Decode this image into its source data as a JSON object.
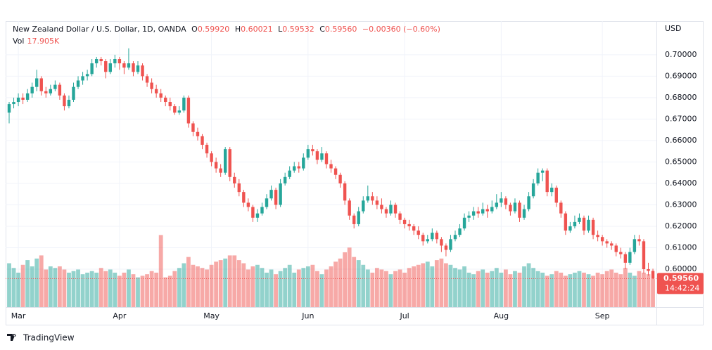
{
  "chart_data": {
    "type": "candlestick",
    "title": "New Zealand Dollar / U.S. Dollar, 1D, OANDA",
    "legend": {
      "open_key": "O",
      "open": "0.59920",
      "high_key": "H",
      "high": "0.60021",
      "low_key": "L",
      "low": "0.59532",
      "close_key": "C",
      "close": "0.59560",
      "change": "−0.00360 (−0.60%)",
      "volume_key": "Vol",
      "volume": "17.905K"
    },
    "currency": "USD",
    "last_price_label": "0.59560",
    "countdown": "14:42:24",
    "brand": "TradingView",
    "up_color": "#26a69a",
    "down_color": "#ef5350",
    "ylim": [
      0.5823,
      0.7157
    ],
    "yticks": [
      {
        "value": 0.6,
        "label": "0.60000"
      },
      {
        "value": 0.61,
        "label": "0.61000"
      },
      {
        "value": 0.62,
        "label": "0.62000"
      },
      {
        "value": 0.63,
        "label": "0.63000"
      },
      {
        "value": 0.64,
        "label": "0.64000"
      },
      {
        "value": 0.65,
        "label": "0.65000"
      },
      {
        "value": 0.66,
        "label": "0.66000"
      },
      {
        "value": 0.67,
        "label": "0.67000"
      },
      {
        "value": 0.68,
        "label": "0.68000"
      },
      {
        "value": 0.69,
        "label": "0.69000"
      },
      {
        "value": 0.7,
        "label": "0.70000"
      }
    ],
    "grid": true,
    "categories": [
      null,
      null,
      "Mar",
      null,
      null,
      null,
      null,
      null,
      null,
      null,
      null,
      null,
      null,
      null,
      null,
      null,
      null,
      null,
      null,
      null,
      null,
      null,
      null,
      null,
      "Apr",
      null,
      null,
      null,
      null,
      null,
      null,
      null,
      null,
      null,
      null,
      null,
      null,
      null,
      null,
      null,
      null,
      null,
      null,
      null,
      "May",
      null,
      null,
      null,
      null,
      null,
      null,
      null,
      null,
      null,
      null,
      null,
      null,
      null,
      null,
      null,
      null,
      null,
      null,
      null,
      null,
      "Jun",
      null,
      null,
      null,
      null,
      null,
      null,
      null,
      null,
      null,
      null,
      null,
      null,
      null,
      null,
      null,
      null,
      null,
      null,
      null,
      null,
      "Jul",
      null,
      null,
      null,
      null,
      null,
      null,
      null,
      null,
      null,
      null,
      null,
      null,
      null,
      null,
      null,
      null,
      null,
      null,
      null,
      null,
      "Aug",
      null,
      null,
      null,
      null,
      null,
      null,
      null,
      null,
      null,
      null,
      null,
      null,
      null,
      null,
      null,
      null,
      null,
      null,
      null,
      null,
      null,
      "Sep",
      null,
      null,
      null,
      null,
      null,
      null,
      null,
      null,
      null,
      null,
      null
    ],
    "candles": [
      [
        0.673,
        0.678,
        0.668,
        0.677
      ],
      [
        0.677,
        0.68,
        0.675,
        0.678
      ],
      [
        0.678,
        0.682,
        0.676,
        0.68
      ],
      [
        0.68,
        0.682,
        0.677,
        0.679
      ],
      [
        0.679,
        0.684,
        0.678,
        0.682
      ],
      [
        0.682,
        0.687,
        0.68,
        0.685
      ],
      [
        0.685,
        0.693,
        0.683,
        0.689
      ],
      [
        0.689,
        0.69,
        0.681,
        0.683
      ],
      [
        0.683,
        0.685,
        0.68,
        0.682
      ],
      [
        0.682,
        0.686,
        0.681,
        0.684
      ],
      [
        0.684,
        0.688,
        0.683,
        0.686
      ],
      [
        0.686,
        0.687,
        0.679,
        0.681
      ],
      [
        0.681,
        0.682,
        0.674,
        0.676
      ],
      [
        0.676,
        0.681,
        0.675,
        0.679
      ],
      [
        0.679,
        0.687,
        0.678,
        0.685
      ],
      [
        0.685,
        0.69,
        0.684,
        0.688
      ],
      [
        0.688,
        0.692,
        0.686,
        0.69
      ],
      [
        0.69,
        0.693,
        0.688,
        0.691
      ],
      [
        0.691,
        0.698,
        0.69,
        0.696
      ],
      [
        0.696,
        0.699,
        0.694,
        0.698
      ],
      [
        0.698,
        0.699,
        0.695,
        0.697
      ],
      [
        0.697,
        0.698,
        0.689,
        0.692
      ],
      [
        0.692,
        0.698,
        0.691,
        0.696
      ],
      [
        0.696,
        0.7,
        0.694,
        0.698
      ],
      [
        0.698,
        0.699,
        0.693,
        0.696
      ],
      [
        0.696,
        0.697,
        0.691,
        0.694
      ],
      [
        0.694,
        0.703,
        0.693,
        0.696
      ],
      [
        0.696,
        0.697,
        0.69,
        0.692
      ],
      [
        0.692,
        0.697,
        0.691,
        0.695
      ],
      [
        0.695,
        0.696,
        0.688,
        0.69
      ],
      [
        0.69,
        0.691,
        0.685,
        0.687
      ],
      [
        0.687,
        0.689,
        0.682,
        0.684
      ],
      [
        0.684,
        0.686,
        0.68,
        0.682
      ],
      [
        0.682,
        0.684,
        0.678,
        0.68
      ],
      [
        0.68,
        0.681,
        0.676,
        0.678
      ],
      [
        0.678,
        0.68,
        0.674,
        0.676
      ],
      [
        0.676,
        0.677,
        0.672,
        0.673
      ],
      [
        0.673,
        0.676,
        0.672,
        0.674
      ],
      [
        0.674,
        0.681,
        0.673,
        0.68
      ],
      [
        0.68,
        0.681,
        0.666,
        0.668
      ],
      [
        0.668,
        0.669,
        0.662,
        0.664
      ],
      [
        0.664,
        0.666,
        0.66,
        0.662
      ],
      [
        0.662,
        0.663,
        0.656,
        0.658
      ],
      [
        0.658,
        0.659,
        0.652,
        0.654
      ],
      [
        0.654,
        0.655,
        0.648,
        0.65
      ],
      [
        0.65,
        0.652,
        0.645,
        0.647
      ],
      [
        0.647,
        0.649,
        0.643,
        0.645
      ],
      [
        0.645,
        0.657,
        0.644,
        0.656
      ],
      [
        0.656,
        0.657,
        0.641,
        0.643
      ],
      [
        0.643,
        0.645,
        0.638,
        0.64
      ],
      [
        0.64,
        0.642,
        0.634,
        0.636
      ],
      [
        0.636,
        0.637,
        0.629,
        0.631
      ],
      [
        0.631,
        0.633,
        0.627,
        0.629
      ],
      [
        0.629,
        0.63,
        0.622,
        0.624
      ],
      [
        0.624,
        0.628,
        0.622,
        0.626
      ],
      [
        0.626,
        0.631,
        0.625,
        0.629
      ],
      [
        0.629,
        0.635,
        0.628,
        0.633
      ],
      [
        0.633,
        0.639,
        0.632,
        0.637
      ],
      [
        0.637,
        0.638,
        0.628,
        0.63
      ],
      [
        0.63,
        0.642,
        0.629,
        0.64
      ],
      [
        0.64,
        0.645,
        0.639,
        0.643
      ],
      [
        0.643,
        0.648,
        0.642,
        0.646
      ],
      [
        0.646,
        0.65,
        0.645,
        0.648
      ],
      [
        0.648,
        0.65,
        0.645,
        0.647
      ],
      [
        0.647,
        0.654,
        0.646,
        0.652
      ],
      [
        0.652,
        0.658,
        0.651,
        0.656
      ],
      [
        0.656,
        0.658,
        0.653,
        0.655
      ],
      [
        0.655,
        0.656,
        0.649,
        0.651
      ],
      [
        0.651,
        0.657,
        0.65,
        0.654
      ],
      [
        0.654,
        0.655,
        0.647,
        0.649
      ],
      [
        0.649,
        0.651,
        0.645,
        0.647
      ],
      [
        0.647,
        0.648,
        0.642,
        0.644
      ],
      [
        0.644,
        0.645,
        0.638,
        0.64
      ],
      [
        0.64,
        0.641,
        0.63,
        0.632
      ],
      [
        0.632,
        0.633,
        0.623,
        0.625
      ],
      [
        0.625,
        0.626,
        0.619,
        0.621
      ],
      [
        0.621,
        0.629,
        0.62,
        0.627
      ],
      [
        0.627,
        0.634,
        0.626,
        0.632
      ],
      [
        0.632,
        0.639,
        0.631,
        0.634
      ],
      [
        0.634,
        0.636,
        0.63,
        0.632
      ],
      [
        0.632,
        0.634,
        0.628,
        0.63
      ],
      [
        0.63,
        0.633,
        0.626,
        0.628
      ],
      [
        0.628,
        0.629,
        0.624,
        0.626
      ],
      [
        0.626,
        0.632,
        0.625,
        0.63
      ],
      [
        0.63,
        0.631,
        0.624,
        0.626
      ],
      [
        0.626,
        0.627,
        0.621,
        0.623
      ],
      [
        0.623,
        0.624,
        0.619,
        0.621
      ],
      [
        0.621,
        0.623,
        0.618,
        0.62
      ],
      [
        0.62,
        0.621,
        0.616,
        0.618
      ],
      [
        0.618,
        0.62,
        0.614,
        0.616
      ],
      [
        0.616,
        0.617,
        0.611,
        0.613
      ],
      [
        0.613,
        0.616,
        0.612,
        0.614
      ],
      [
        0.614,
        0.619,
        0.613,
        0.617
      ],
      [
        0.617,
        0.618,
        0.612,
        0.614
      ],
      [
        0.614,
        0.615,
        0.608,
        0.611
      ],
      [
        0.611,
        0.612,
        0.606,
        0.609
      ],
      [
        0.609,
        0.616,
        0.608,
        0.614
      ],
      [
        0.614,
        0.618,
        0.613,
        0.616
      ],
      [
        0.616,
        0.621,
        0.615,
        0.619
      ],
      [
        0.619,
        0.626,
        0.618,
        0.624
      ],
      [
        0.624,
        0.627,
        0.622,
        0.625
      ],
      [
        0.625,
        0.629,
        0.623,
        0.627
      ],
      [
        0.627,
        0.629,
        0.624,
        0.626
      ],
      [
        0.626,
        0.631,
        0.625,
        0.628
      ],
      [
        0.628,
        0.63,
        0.624,
        0.627
      ],
      [
        0.627,
        0.632,
        0.626,
        0.629
      ],
      [
        0.629,
        0.635,
        0.628,
        0.631
      ],
      [
        0.631,
        0.636,
        0.629,
        0.633
      ],
      [
        0.633,
        0.634,
        0.628,
        0.63
      ],
      [
        0.63,
        0.631,
        0.625,
        0.627
      ],
      [
        0.627,
        0.633,
        0.626,
        0.631
      ],
      [
        0.631,
        0.632,
        0.622,
        0.624
      ],
      [
        0.624,
        0.63,
        0.623,
        0.628
      ],
      [
        0.628,
        0.636,
        0.627,
        0.634
      ],
      [
        0.634,
        0.642,
        0.633,
        0.64
      ],
      [
        0.64,
        0.647,
        0.639,
        0.645
      ],
      [
        0.645,
        0.647,
        0.641,
        0.646
      ],
      [
        0.646,
        0.647,
        0.634,
        0.636
      ],
      [
        0.636,
        0.64,
        0.634,
        0.638
      ],
      [
        0.638,
        0.639,
        0.629,
        0.631
      ],
      [
        0.631,
        0.632,
        0.624,
        0.626
      ],
      [
        0.626,
        0.627,
        0.616,
        0.618
      ],
      [
        0.618,
        0.622,
        0.617,
        0.62
      ],
      [
        0.62,
        0.625,
        0.619,
        0.622
      ],
      [
        0.622,
        0.626,
        0.621,
        0.624
      ],
      [
        0.624,
        0.625,
        0.616,
        0.618
      ],
      [
        0.618,
        0.625,
        0.617,
        0.623
      ],
      [
        0.623,
        0.624,
        0.614,
        0.616
      ],
      [
        0.616,
        0.618,
        0.613,
        0.615
      ],
      [
        0.615,
        0.616,
        0.611,
        0.613
      ],
      [
        0.613,
        0.614,
        0.61,
        0.612
      ],
      [
        0.612,
        0.613,
        0.609,
        0.611
      ],
      [
        0.611,
        0.612,
        0.606,
        0.608
      ],
      [
        0.608,
        0.61,
        0.605,
        0.607
      ],
      [
        0.607,
        0.608,
        0.6,
        0.603
      ],
      [
        0.603,
        0.61,
        0.602,
        0.608
      ],
      [
        0.608,
        0.616,
        0.607,
        0.614
      ],
      [
        0.614,
        0.616,
        0.611,
        0.613
      ],
      [
        0.613,
        0.614,
        0.598,
        0.6
      ],
      [
        0.6,
        0.603,
        0.597,
        0.5992
      ],
      [
        0.5992,
        0.60021,
        0.59532,
        0.5956
      ]
    ],
    "volumes": [
      28,
      25,
      22,
      27,
      30,
      26,
      31,
      33,
      24,
      26,
      25,
      26,
      24,
      22,
      23,
      24,
      21,
      22,
      23,
      22,
      25,
      23,
      24,
      22,
      20,
      22,
      24,
      21,
      19,
      20,
      21,
      23,
      22,
      46,
      19,
      20,
      23,
      25,
      28,
      32,
      27,
      26,
      25,
      24,
      27,
      29,
      30,
      31,
      33,
      33,
      30,
      28,
      24,
      26,
      27,
      25,
      22,
      24,
      21,
      23,
      25,
      27,
      22,
      24,
      25,
      26,
      27,
      23,
      21,
      24,
      26,
      29,
      31,
      35,
      38,
      32,
      30,
      27,
      24,
      22,
      25,
      24,
      23,
      21,
      23,
      24,
      22,
      25,
      26,
      27,
      28,
      29,
      26,
      30,
      31,
      28,
      27,
      25,
      24,
      26,
      22,
      21,
      23,
      24,
      22,
      23,
      25,
      22,
      24,
      21,
      23,
      22,
      26,
      28,
      25,
      23,
      22,
      20,
      21,
      23,
      22,
      20,
      21,
      22,
      23,
      22,
      21,
      20,
      22,
      21,
      23,
      24,
      22,
      21,
      25,
      22,
      20,
      23,
      22,
      21,
      17.905
    ]
  }
}
